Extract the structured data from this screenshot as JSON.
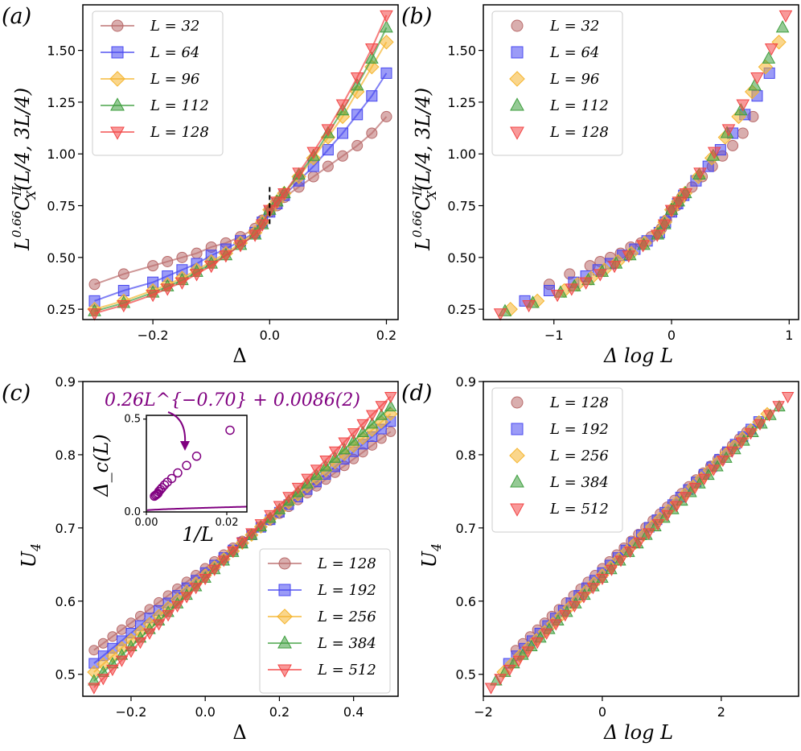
{
  "colors": {
    "L32": "#b96b6b",
    "L64": "#4848f0",
    "L96": "#f5b52e",
    "L112": "#3e9e3e",
    "L128": "#f24545",
    "c128": "#b96b6b",
    "c192": "#4848f0",
    "c256": "#f5b52e",
    "c384": "#3e9e3e",
    "c512": "#f24545",
    "inset": "#800080"
  },
  "chart_data": [
    {
      "panel": "(a)",
      "type": "line",
      "xlabel": "Δ",
      "ylabel": "L^{0.66} C_X^{II}(L/4, 3L/4)",
      "xlim": [
        -0.32,
        0.22
      ],
      "ylim": [
        0.2,
        1.72
      ],
      "xticks": [
        -0.2,
        0.0,
        0.2
      ],
      "xtick_labels": [
        "−0.2",
        "0.0",
        "0.2"
      ],
      "yticks": [
        0.25,
        0.5,
        0.75,
        1.0,
        1.25,
        1.5
      ],
      "ytick_labels": [
        "0.25",
        "0.50",
        "0.75",
        "1.00",
        "1.25",
        "1.50"
      ],
      "legend_position": "top-left",
      "annotation": "dashed vertical marker at Δ = 0, y ≈ 0.75",
      "series": [
        {
          "name": "L = 32",
          "marker": "circle",
          "x": [
            -0.3,
            -0.25,
            -0.2,
            -0.175,
            -0.15,
            -0.125,
            -0.1,
            -0.075,
            -0.05,
            -0.025,
            -0.0125,
            0,
            0.0125,
            0.025,
            0.05,
            0.075,
            0.1,
            0.125,
            0.15,
            0.175,
            0.2
          ],
          "y": [
            0.37,
            0.42,
            0.46,
            0.48,
            0.5,
            0.52,
            0.55,
            0.57,
            0.6,
            0.64,
            0.68,
            0.72,
            0.75,
            0.79,
            0.84,
            0.89,
            0.94,
            0.99,
            1.04,
            1.1,
            1.18
          ]
        },
        {
          "name": "L = 64",
          "marker": "square",
          "x": [
            -0.3,
            -0.25,
            -0.2,
            -0.175,
            -0.15,
            -0.125,
            -0.1,
            -0.075,
            -0.05,
            -0.025,
            -0.0125,
            0,
            0.0125,
            0.025,
            0.05,
            0.075,
            0.1,
            0.125,
            0.15,
            0.175,
            0.2
          ],
          "y": [
            0.29,
            0.34,
            0.38,
            0.41,
            0.44,
            0.47,
            0.51,
            0.54,
            0.58,
            0.62,
            0.67,
            0.72,
            0.76,
            0.8,
            0.87,
            0.94,
            1.02,
            1.1,
            1.19,
            1.28,
            1.39
          ]
        },
        {
          "name": "L = 96",
          "marker": "diamond",
          "x": [
            -0.3,
            -0.25,
            -0.2,
            -0.175,
            -0.15,
            -0.125,
            -0.1,
            -0.075,
            -0.05,
            -0.025,
            -0.0125,
            0,
            0.0125,
            0.025,
            0.05,
            0.075,
            0.1,
            0.125,
            0.15,
            0.175,
            0.2
          ],
          "y": [
            0.25,
            0.29,
            0.34,
            0.37,
            0.4,
            0.44,
            0.48,
            0.52,
            0.57,
            0.62,
            0.67,
            0.73,
            0.77,
            0.81,
            0.89,
            0.98,
            1.08,
            1.18,
            1.3,
            1.42,
            1.54
          ]
        },
        {
          "name": "L = 112",
          "marker": "triangle-up",
          "x": [
            -0.3,
            -0.25,
            -0.2,
            -0.175,
            -0.15,
            -0.125,
            -0.1,
            -0.075,
            -0.05,
            -0.025,
            -0.0125,
            0,
            0.0125,
            0.025,
            0.05,
            0.075,
            0.1,
            0.125,
            0.15,
            0.175,
            0.2
          ],
          "y": [
            0.24,
            0.28,
            0.33,
            0.36,
            0.39,
            0.43,
            0.47,
            0.51,
            0.56,
            0.61,
            0.66,
            0.73,
            0.77,
            0.81,
            0.9,
            0.99,
            1.1,
            1.21,
            1.33,
            1.46,
            1.61
          ]
        },
        {
          "name": "L = 128",
          "marker": "triangle-down",
          "x": [
            -0.3,
            -0.25,
            -0.2,
            -0.175,
            -0.15,
            -0.125,
            -0.1,
            -0.075,
            -0.05,
            -0.025,
            -0.0125,
            0,
            0.0125,
            0.025,
            0.05,
            0.075,
            0.1,
            0.125,
            0.15,
            0.175,
            0.2
          ],
          "y": [
            0.23,
            0.27,
            0.32,
            0.35,
            0.38,
            0.42,
            0.46,
            0.51,
            0.56,
            0.61,
            0.66,
            0.73,
            0.77,
            0.81,
            0.91,
            1.01,
            1.12,
            1.24,
            1.37,
            1.51,
            1.67
          ]
        }
      ]
    },
    {
      "panel": "(b)",
      "type": "scatter",
      "xlabel": "Δ log L",
      "ylabel": "L^{0.66} C_X^{II}(L/4, 3L/4)",
      "xlim": [
        -1.6,
        1.08
      ],
      "ylim": [
        0.2,
        1.72
      ],
      "xticks": [
        -1,
        0,
        1
      ],
      "xtick_labels": [
        "−1",
        "0",
        "1"
      ],
      "yticks": [
        0.25,
        0.5,
        0.75,
        1.0,
        1.25,
        1.5
      ],
      "ytick_labels": [
        "0.25",
        "0.50",
        "0.75",
        "1.00",
        "1.25",
        "1.50"
      ],
      "legend_position": "top-left",
      "series": [
        {
          "name": "L = 32",
          "marker": "circle",
          "L": 32
        },
        {
          "name": "L = 64",
          "marker": "square",
          "L": 64
        },
        {
          "name": "L = 96",
          "marker": "diamond",
          "L": 96
        },
        {
          "name": "L = 112",
          "marker": "triangle-up",
          "L": 112
        },
        {
          "name": "L = 128",
          "marker": "triangle-down",
          "L": 128
        }
      ],
      "note": "same y-values as panel (a), x = Δ·ln L"
    },
    {
      "panel": "(c)",
      "type": "line",
      "xlabel": "Δ",
      "ylabel": "U_4",
      "xlim": [
        -0.33,
        0.52
      ],
      "ylim": [
        0.47,
        0.9
      ],
      "xticks": [
        -0.2,
        0.0,
        0.2,
        0.4
      ],
      "xtick_labels": [
        "−0.2",
        "0.0",
        "0.2",
        "0.4"
      ],
      "yticks": [
        0.5,
        0.6,
        0.7,
        0.8,
        0.9
      ],
      "ytick_labels": [
        "0.5",
        "0.6",
        "0.7",
        "0.8",
        "0.9"
      ],
      "legend_position": "bottom-right",
      "x": [
        -0.3,
        -0.275,
        -0.25,
        -0.225,
        -0.2,
        -0.175,
        -0.15,
        -0.125,
        -0.1,
        -0.075,
        -0.05,
        -0.025,
        0,
        0.025,
        0.05,
        0.075,
        0.1,
        0.125,
        0.15,
        0.175,
        0.2,
        0.225,
        0.25,
        0.275,
        0.3,
        0.325,
        0.35,
        0.375,
        0.4,
        0.425,
        0.45,
        0.475,
        0.5
      ],
      "series": [
        {
          "name": "L = 128",
          "marker": "circle",
          "y0": 0.533,
          "slope": 0.373
        },
        {
          "name": "L = 192",
          "marker": "square",
          "y0": 0.515,
          "slope": 0.413
        },
        {
          "name": "L = 256",
          "marker": "diamond",
          "y0": 0.503,
          "slope": 0.441
        },
        {
          "name": "L = 384",
          "marker": "triangle-up",
          "y0": 0.491,
          "slope": 0.468
        },
        {
          "name": "L = 512",
          "marker": "triangle-down",
          "y0": 0.482,
          "slope": 0.497
        }
      ],
      "series_values_note": "y = y0 + slope·(Δ + 0.3), crossing near Δ ≈ 0.15, U4 ≈ 0.705"
    },
    {
      "panel": "(c) inset",
      "type": "scatter",
      "xlabel": "1/L",
      "ylabel": "Δ_c(L)",
      "xlim": [
        0,
        0.025
      ],
      "ylim": [
        0,
        0.52
      ],
      "xticks": [
        0.0,
        0.02
      ],
      "xtick_labels": [
        "0.00",
        "0.02"
      ],
      "yticks": [
        0.0,
        0.5
      ],
      "ytick_labels": [
        "0.0",
        "0.5"
      ],
      "fit_label": "0.26L^{−0.70} + 0.0086(2)",
      "fit": {
        "a": 0.26,
        "b": 0.7,
        "c": 0.0086
      },
      "x": [
        0.0208,
        0.0125,
        0.01,
        0.0078,
        0.0063,
        0.0052,
        0.0045,
        0.0039,
        0.0035,
        0.0031,
        0.0029,
        0.0026,
        0.0023,
        0.002
      ],
      "y": [
        0.44,
        0.3,
        0.25,
        0.21,
        0.18,
        0.16,
        0.145,
        0.13,
        0.12,
        0.11,
        0.1,
        0.095,
        0.09,
        0.085
      ]
    },
    {
      "panel": "(d)",
      "type": "scatter",
      "xlabel": "Δ log L",
      "ylabel": "U_4",
      "xlim": [
        -2.0,
        3.3
      ],
      "ylim": [
        0.47,
        0.9
      ],
      "xticks": [
        -2,
        0,
        2
      ],
      "xtick_labels": [
        "−2",
        "0",
        "2"
      ],
      "yticks": [
        0.5,
        0.6,
        0.7,
        0.8,
        0.9
      ],
      "ytick_labels": [
        "0.5",
        "0.6",
        "0.7",
        "0.8",
        "0.9"
      ],
      "legend_position": "top-left",
      "series": [
        {
          "name": "L = 128",
          "marker": "circle",
          "L": 128
        },
        {
          "name": "L = 192",
          "marker": "square",
          "L": 192
        },
        {
          "name": "L = 256",
          "marker": "diamond",
          "L": 256
        },
        {
          "name": "L = 384",
          "marker": "triangle-up",
          "L": 384
        },
        {
          "name": "L = 512",
          "marker": "triangle-down",
          "L": 512
        }
      ],
      "note": "same y-values as panel (c), x = Δ·ln L"
    }
  ],
  "labels": {
    "a": "(a)",
    "b": "(b)",
    "c": "(c)",
    "d": "(d)",
    "xa": "Δ",
    "xb": "Δ log L",
    "xc": "Δ",
    "xd": "Δ log L",
    "yc": "U",
    "yc_sub": "4",
    "yd": "U",
    "yd_sub": "4",
    "ya_main": "C",
    "ya_sup": "II",
    "ya_sub": "X",
    "inset_x": "1/L",
    "inset_y": "Δ",
    "inset_y_sub": "c",
    "inset_y_tail": "(L)"
  }
}
